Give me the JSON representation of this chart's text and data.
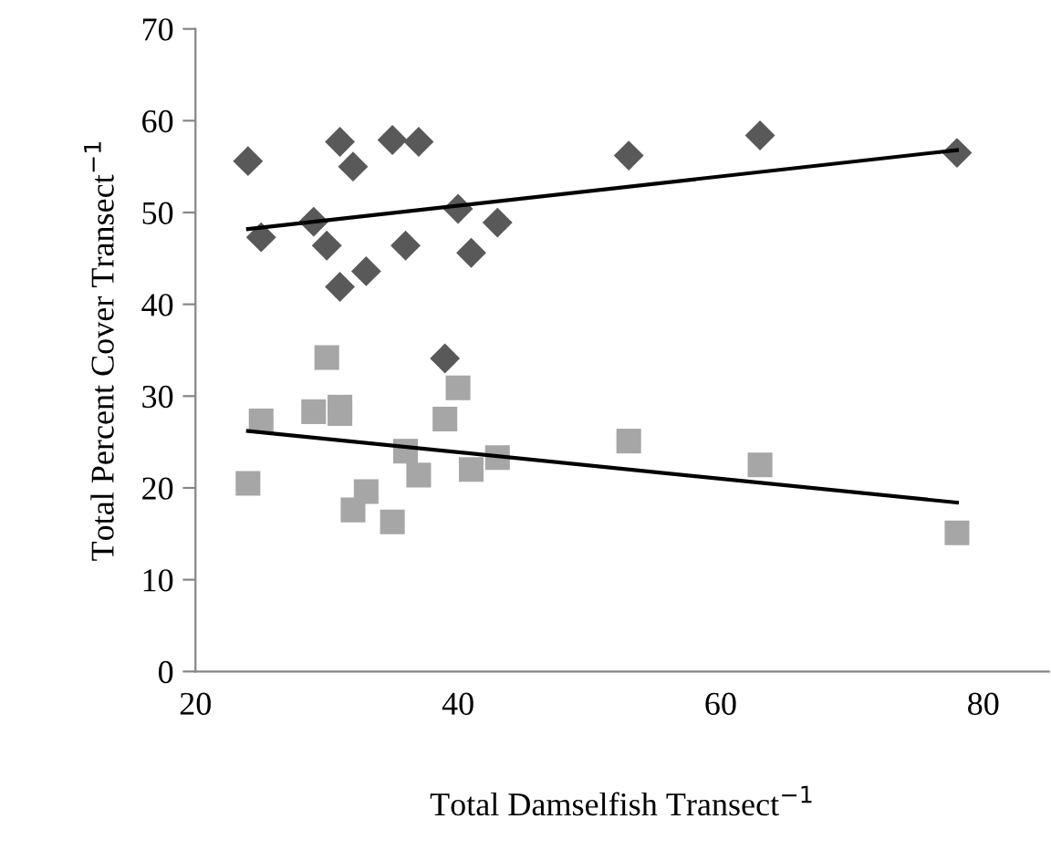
{
  "chart_data": {
    "type": "scatter",
    "xlabel": "Total Damselfish Transect$^{−1}$",
    "ylabel": "Total Percent Cover Transect$^{−1}$",
    "xlim": [
      20,
      85
    ],
    "xticks": [
      20,
      40,
      60,
      80
    ],
    "ylim": [
      0,
      70
    ],
    "yticks": [
      0,
      10,
      20,
      30,
      40,
      50,
      60,
      70
    ],
    "grid": false,
    "legend": false,
    "series": [
      {
        "marker": "diamond",
        "color": "#595959",
        "x": [
          24,
          25,
          29,
          30,
          31,
          31,
          32,
          33,
          35,
          36,
          37,
          39,
          40,
          41,
          43,
          53,
          63,
          78
        ],
        "values": [
          55.6,
          47.3,
          49,
          46.4,
          57.7,
          41.9,
          55,
          43.6,
          57.9,
          46.4,
          57.7,
          34.1,
          50.4,
          45.6,
          48.9,
          56.2,
          58.4,
          56.5
        ]
      },
      {
        "marker": "square",
        "color": "#a6a6a6",
        "x": [
          24,
          25,
          29,
          30,
          31,
          31,
          32,
          33,
          35,
          36,
          37,
          39,
          40,
          41,
          43,
          53,
          63,
          78
        ],
        "values": [
          20.5,
          27.3,
          28.3,
          34.2,
          28.8,
          28.1,
          17.6,
          19.6,
          16.3,
          24,
          21.4,
          27.5,
          30.9,
          22,
          23.3,
          25.1,
          22.5,
          15.1
        ]
      },
      {
        "type": "line",
        "marker": "none",
        "color": "#000000",
        "x": [
          24,
          78
        ],
        "values": [
          48.2,
          56.8
        ]
      },
      {
        "type": "line",
        "marker": "none",
        "color": "#000000",
        "x": [
          24,
          78
        ],
        "values": [
          26.2,
          18.4
        ]
      }
    ]
  }
}
